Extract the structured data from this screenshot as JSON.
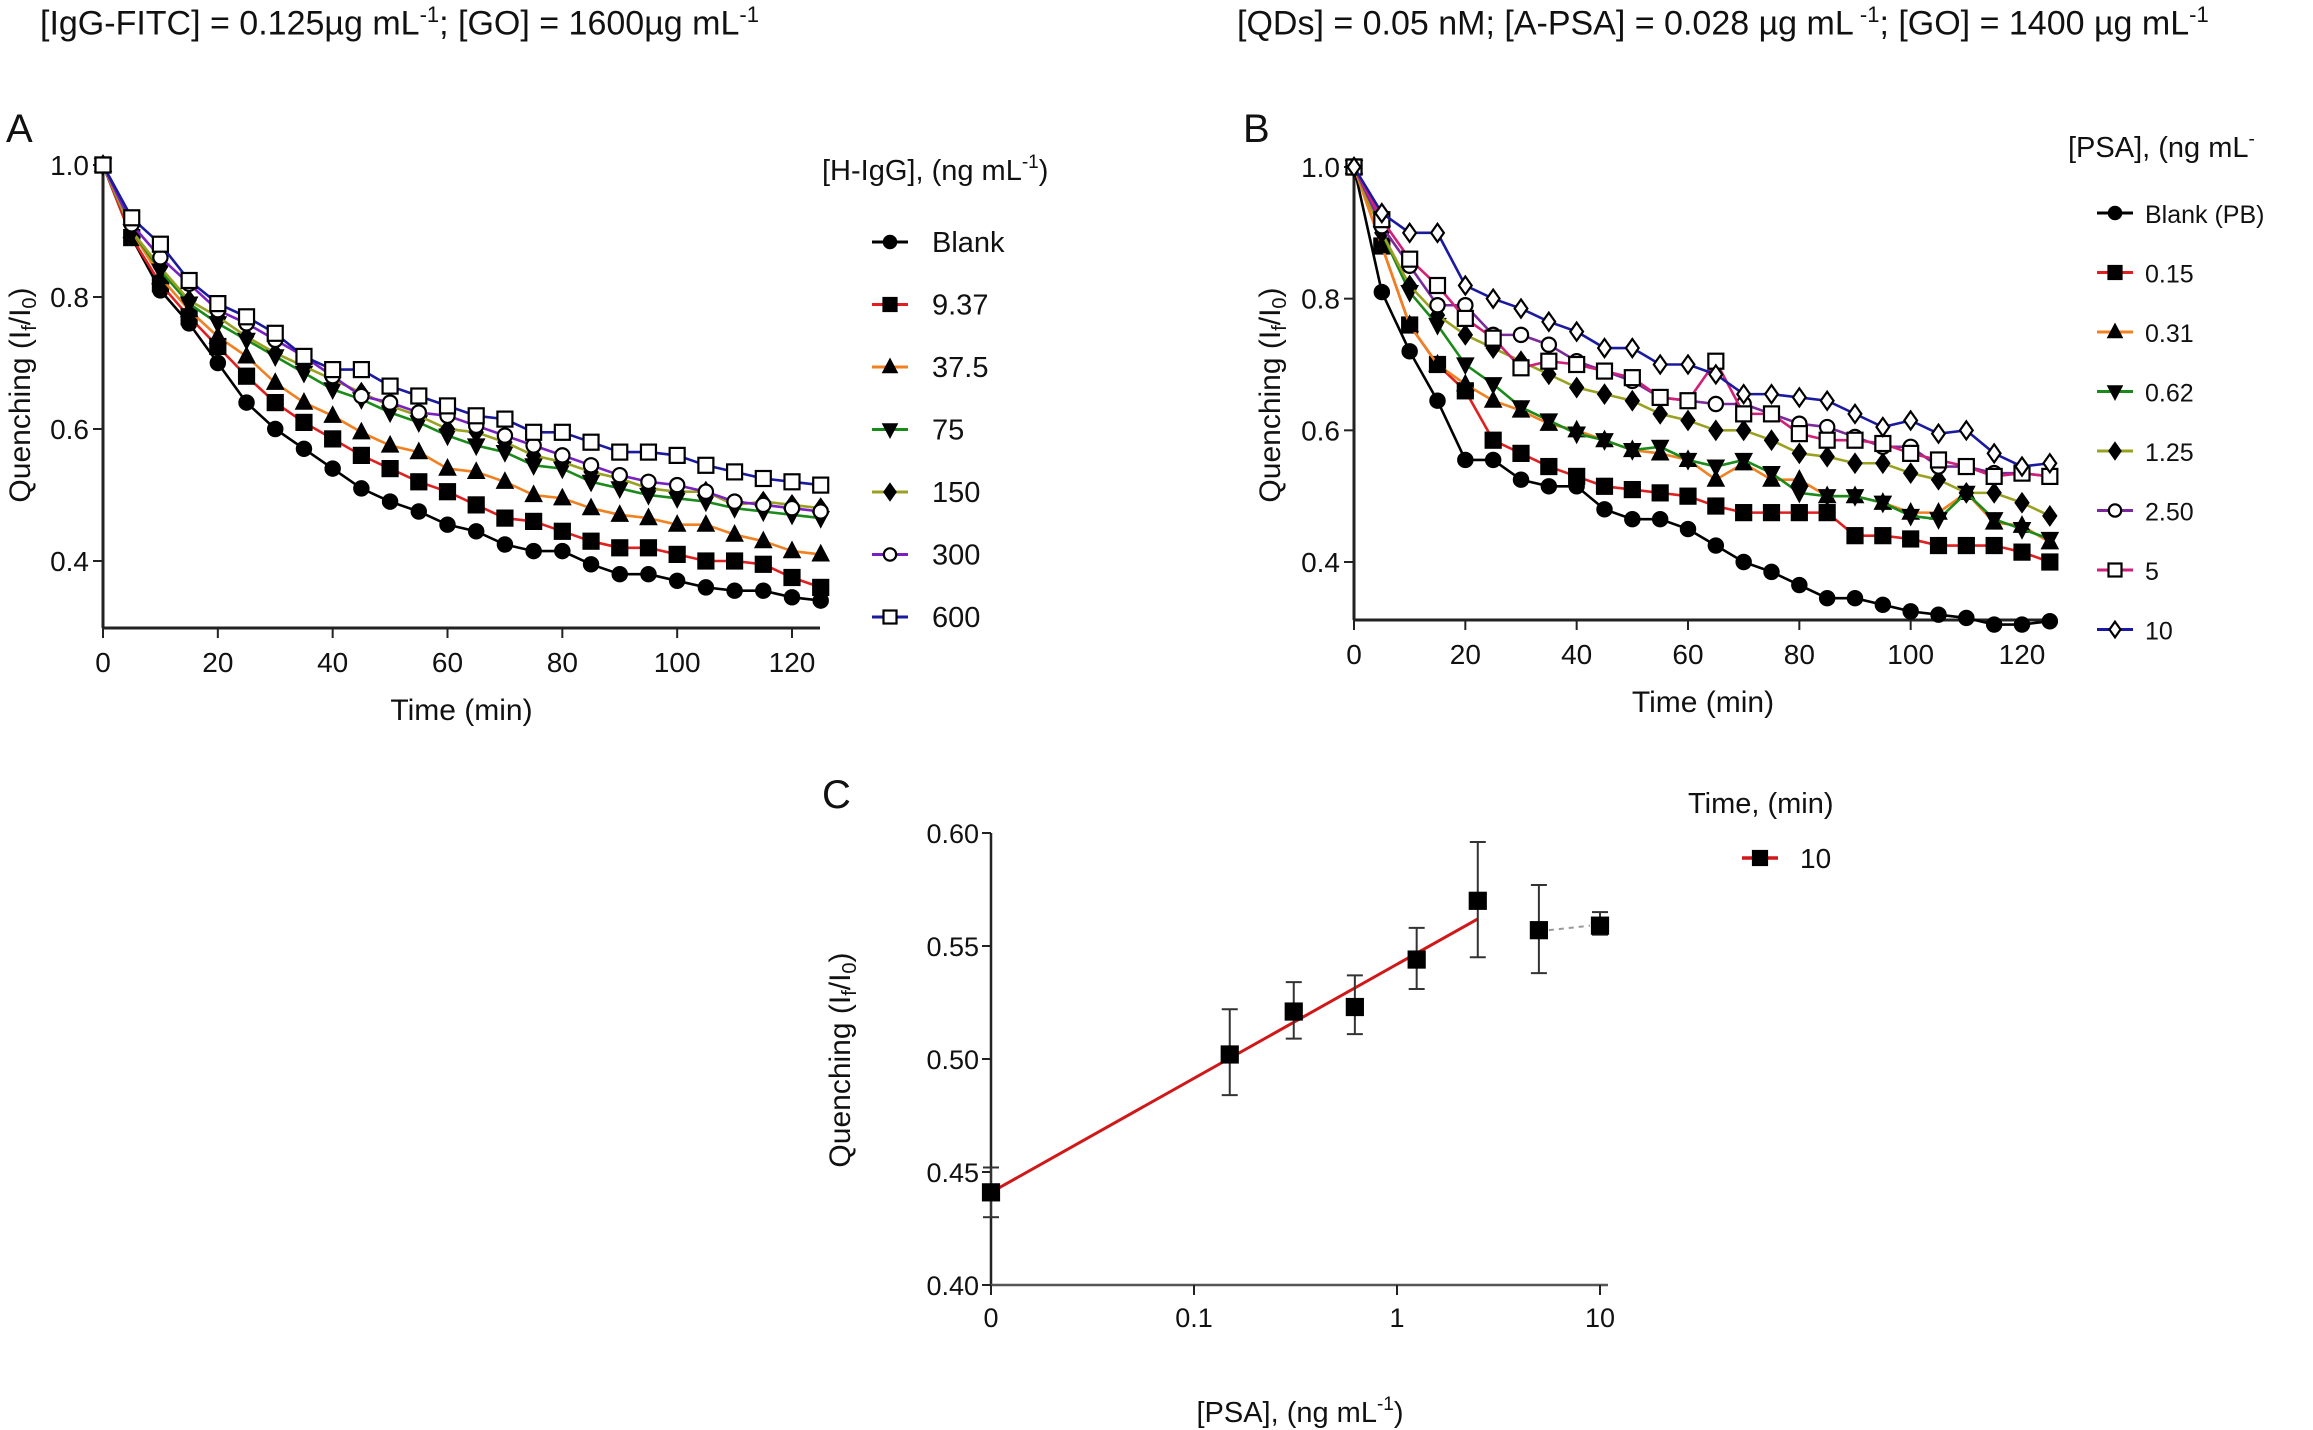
{
  "conditions": {
    "left": {
      "pre": "[IgG-FITC] = 0.125µg mL",
      "sup1": "-1",
      "mid": "; [GO] = 1600µg mL",
      "sup2": "-1"
    },
    "right": {
      "pre": "[QDs] = 0.05 nM; [A-PSA] = 0.028 µg mL",
      "sup1": " -1",
      "mid": "; [GO] = 1400 µg mL",
      "sup2": "-1"
    }
  },
  "chart_data": [
    {
      "panel": "A",
      "type": "line",
      "title": "",
      "xlabel": "Time (min)",
      "ylabel": "Quenching (I_f/I_0)",
      "xlim": [
        0,
        125
      ],
      "ylim": [
        0.3,
        1.0
      ],
      "xticks": [
        0,
        20,
        40,
        60,
        80,
        100,
        120
      ],
      "yticks": [
        0.4,
        0.6,
        0.8,
        1.0
      ],
      "ytick_labels": [
        "0.4",
        "0.6",
        "0.8",
        "1.0"
      ],
      "grid": false,
      "legend_title": "[H-IgG], (ng mL-1)",
      "legend_position": "right",
      "x": [
        0,
        5,
        10,
        15,
        20,
        25,
        30,
        35,
        40,
        45,
        50,
        55,
        60,
        65,
        70,
        75,
        80,
        85,
        90,
        95,
        100,
        105,
        110,
        115,
        120,
        125
      ],
      "series": [
        {
          "name": "Blank",
          "color": "#000000",
          "marker": "circle-filled",
          "values": [
            1.0,
            0.89,
            0.81,
            0.76,
            0.7,
            0.64,
            0.6,
            0.57,
            0.54,
            0.51,
            0.49,
            0.475,
            0.455,
            0.445,
            0.425,
            0.415,
            0.415,
            0.395,
            0.38,
            0.38,
            0.37,
            0.36,
            0.355,
            0.355,
            0.345,
            0.34
          ]
        },
        {
          "name": "9.37",
          "color": "#e02020",
          "marker": "square-filled",
          "values": [
            1.0,
            0.89,
            0.82,
            0.77,
            0.725,
            0.68,
            0.64,
            0.61,
            0.585,
            0.56,
            0.54,
            0.52,
            0.505,
            0.485,
            0.465,
            0.46,
            0.445,
            0.43,
            0.42,
            0.42,
            0.41,
            0.4,
            0.4,
            0.395,
            0.375,
            0.36
          ]
        },
        {
          "name": "37.5",
          "color": "#f08020",
          "marker": "triangle-up-filled",
          "values": [
            1.0,
            0.9,
            0.83,
            0.78,
            0.74,
            0.71,
            0.67,
            0.64,
            0.62,
            0.595,
            0.575,
            0.565,
            0.54,
            0.535,
            0.52,
            0.5,
            0.495,
            0.48,
            0.47,
            0.465,
            0.455,
            0.455,
            0.44,
            0.43,
            0.415,
            0.41
          ]
        },
        {
          "name": "75",
          "color": "#1a8a1a",
          "marker": "triangle-down-filled",
          "values": [
            1.0,
            0.9,
            0.84,
            0.79,
            0.76,
            0.735,
            0.71,
            0.685,
            0.66,
            0.645,
            0.625,
            0.61,
            0.59,
            0.575,
            0.565,
            0.545,
            0.54,
            0.52,
            0.51,
            0.5,
            0.495,
            0.49,
            0.48,
            0.475,
            0.47,
            0.465
          ]
        },
        {
          "name": "150",
          "color": "#9aa020",
          "marker": "diamond-filled",
          "values": [
            1.0,
            0.9,
            0.845,
            0.795,
            0.77,
            0.74,
            0.715,
            0.695,
            0.675,
            0.655,
            0.635,
            0.62,
            0.6,
            0.595,
            0.58,
            0.56,
            0.55,
            0.535,
            0.525,
            0.51,
            0.505,
            0.505,
            0.485,
            0.49,
            0.485,
            0.48
          ]
        },
        {
          "name": "300",
          "color": "#7a20c0",
          "marker": "circle-open",
          "values": [
            1.0,
            0.91,
            0.86,
            0.82,
            0.78,
            0.76,
            0.735,
            0.71,
            0.68,
            0.65,
            0.64,
            0.625,
            0.62,
            0.605,
            0.59,
            0.575,
            0.56,
            0.545,
            0.53,
            0.52,
            0.515,
            0.505,
            0.49,
            0.485,
            0.48,
            0.475
          ]
        },
        {
          "name": "600",
          "color": "#1a1aa0",
          "marker": "square-open",
          "values": [
            1.0,
            0.92,
            0.88,
            0.825,
            0.79,
            0.77,
            0.745,
            0.71,
            0.69,
            0.69,
            0.665,
            0.65,
            0.635,
            0.62,
            0.615,
            0.595,
            0.595,
            0.58,
            0.565,
            0.565,
            0.56,
            0.545,
            0.535,
            0.525,
            0.52,
            0.515
          ]
        }
      ]
    },
    {
      "panel": "B",
      "type": "line",
      "title": "",
      "xlabel": "Time (min)",
      "ylabel": "Quenching (I_f/I_0)",
      "xlim": [
        0,
        125
      ],
      "ylim": [
        0.3,
        1.0
      ],
      "xticks": [
        0,
        20,
        40,
        60,
        80,
        100,
        120
      ],
      "yticks": [
        0.4,
        0.6,
        0.8,
        1.0
      ],
      "ytick_labels": [
        "0.4",
        "0.6",
        "0.8",
        "1.0"
      ],
      "grid": false,
      "legend_title": "[PSA], (ng mL",
      "legend_position": "right",
      "x": [
        0,
        5,
        10,
        15,
        20,
        25,
        30,
        35,
        40,
        45,
        50,
        55,
        60,
        65,
        70,
        75,
        80,
        85,
        90,
        95,
        100,
        105,
        110,
        115,
        120,
        125
      ],
      "series": [
        {
          "name": "Blank (PB)",
          "color": "#000000",
          "marker": "circle-filled",
          "values": [
            1.0,
            0.81,
            0.72,
            0.645,
            0.555,
            0.555,
            0.525,
            0.515,
            0.515,
            0.48,
            0.465,
            0.465,
            0.45,
            0.425,
            0.4,
            0.385,
            0.365,
            0.345,
            0.345,
            0.335,
            0.325,
            0.32,
            0.315,
            0.305,
            0.305,
            0.31
          ]
        },
        {
          "name": "0.15",
          "color": "#e02020",
          "marker": "square-filled",
          "values": [
            1.0,
            0.88,
            0.76,
            0.7,
            0.66,
            0.585,
            0.565,
            0.545,
            0.53,
            0.515,
            0.51,
            0.505,
            0.5,
            0.485,
            0.475,
            0.475,
            0.475,
            0.475,
            0.44,
            0.44,
            0.435,
            0.425,
            0.425,
            0.425,
            0.415,
            0.4
          ]
        },
        {
          "name": "0.31",
          "color": "#f08020",
          "marker": "triangle-up-filled",
          "values": [
            1.0,
            0.88,
            0.76,
            0.7,
            0.67,
            0.645,
            0.63,
            0.61,
            0.6,
            0.585,
            0.57,
            0.565,
            0.555,
            0.525,
            0.55,
            0.525,
            0.525,
            0.5,
            0.5,
            0.49,
            0.475,
            0.475,
            0.505,
            0.46,
            0.455,
            0.43
          ]
        },
        {
          "name": "0.62",
          "color": "#1a8a1a",
          "marker": "triangle-down-filled",
          "values": [
            1.0,
            0.9,
            0.81,
            0.76,
            0.7,
            0.67,
            0.635,
            0.615,
            0.595,
            0.585,
            0.57,
            0.575,
            0.555,
            0.545,
            0.555,
            0.535,
            0.505,
            0.5,
            0.5,
            0.49,
            0.47,
            0.465,
            0.505,
            0.465,
            0.45,
            0.435
          ]
        },
        {
          "name": "1.25",
          "color": "#9aa020",
          "marker": "diamond-filled",
          "values": [
            1.0,
            0.9,
            0.82,
            0.775,
            0.745,
            0.725,
            0.705,
            0.685,
            0.665,
            0.655,
            0.645,
            0.625,
            0.615,
            0.6,
            0.6,
            0.585,
            0.565,
            0.56,
            0.55,
            0.55,
            0.535,
            0.525,
            0.505,
            0.505,
            0.49,
            0.47
          ]
        },
        {
          "name": "2.50",
          "color": "#7a2a9a",
          "marker": "circle-open",
          "values": [
            1.0,
            0.91,
            0.85,
            0.79,
            0.79,
            0.745,
            0.745,
            0.73,
            0.705,
            0.69,
            0.675,
            0.65,
            0.645,
            0.64,
            0.64,
            0.625,
            0.61,
            0.605,
            0.59,
            0.575,
            0.575,
            0.545,
            0.545,
            0.535,
            0.535,
            0.53
          ]
        },
        {
          "name": "5",
          "color": "#d0207a",
          "marker": "square-open",
          "values": [
            1.0,
            0.92,
            0.86,
            0.82,
            0.77,
            0.74,
            0.695,
            0.705,
            0.7,
            0.69,
            0.68,
            0.65,
            0.645,
            0.705,
            0.625,
            0.625,
            0.595,
            0.585,
            0.585,
            0.58,
            0.565,
            0.555,
            0.545,
            0.53,
            0.535,
            0.53
          ]
        },
        {
          "name": "10",
          "color": "#1a1aa0",
          "marker": "diamond-open",
          "values": [
            1.0,
            0.93,
            0.9,
            0.9,
            0.82,
            0.8,
            0.785,
            0.765,
            0.75,
            0.725,
            0.725,
            0.7,
            0.7,
            0.685,
            0.655,
            0.655,
            0.65,
            0.645,
            0.625,
            0.605,
            0.615,
            0.595,
            0.6,
            0.565,
            0.545,
            0.55
          ]
        }
      ]
    },
    {
      "panel": "C",
      "type": "scatter",
      "title": "",
      "xlabel": "[PSA], (ng mL-1)",
      "ylabel": "Quenching (I_f/I_0)",
      "xscale": "log",
      "xlim": [
        0.01,
        10
      ],
      "ylim": [
        0.4,
        0.6
      ],
      "xticks": [
        0.01,
        0.1,
        1,
        10
      ],
      "xtick_labels": [
        "0",
        "0.1",
        "1",
        "10"
      ],
      "yticks": [
        0.4,
        0.45,
        0.5,
        0.55,
        0.6
      ],
      "ytick_labels": [
        "0.40",
        "0.45",
        "0.50",
        "0.55",
        "0.60"
      ],
      "grid": false,
      "legend_title": "Time, (min)",
      "legend_position": "top-right",
      "series": [
        {
          "name": "10",
          "color": "#000000",
          "line_color": "#d01818",
          "marker": "square-filled",
          "x_labels": [
            "0",
            "0.15",
            "0.31",
            "0.62",
            "1.25",
            "2.50",
            "5",
            "10"
          ],
          "x": [
            0.01,
            0.15,
            0.31,
            0.62,
            1.25,
            2.5,
            5,
            10
          ],
          "values": [
            0.441,
            0.502,
            0.521,
            0.523,
            0.544,
            0.57,
            0.557,
            0.559
          ],
          "err_low": [
            0.43,
            0.484,
            0.509,
            0.511,
            0.531,
            0.545,
            0.538,
            0.555
          ],
          "err_high": [
            0.452,
            0.522,
            0.534,
            0.537,
            0.558,
            0.596,
            0.577,
            0.565
          ]
        }
      ],
      "fit_line": {
        "x": [
          0.01,
          2.5
        ],
        "y": [
          0.441,
          0.562
        ],
        "color": "#d01818"
      },
      "dotted_connector": {
        "x": [
          5,
          10
        ],
        "y": [
          0.557,
          0.559
        ],
        "color": "#999999"
      }
    }
  ],
  "labels": {
    "panel_a": "A",
    "panel_b": "B",
    "panel_c": "C",
    "a_legend_title": "[H-IgG], (ng mL",
    "a_legend_sup": "-1",
    "a_legend_close": ")",
    "b_legend_title": "[PSA], (ng mL",
    "b_legend_sup": "-",
    "c_legend_title": "Time, (min)",
    "c_xlabel": "[PSA], (ng mL",
    "c_xlabel_sup": "-1",
    "c_xlabel_close": ")",
    "ylabel_main": "Quenching (I",
    "ylabel_sub_f": "f",
    "ylabel_slash": "/I",
    "ylabel_sub_0": "0",
    "ylabel_close": ")"
  }
}
